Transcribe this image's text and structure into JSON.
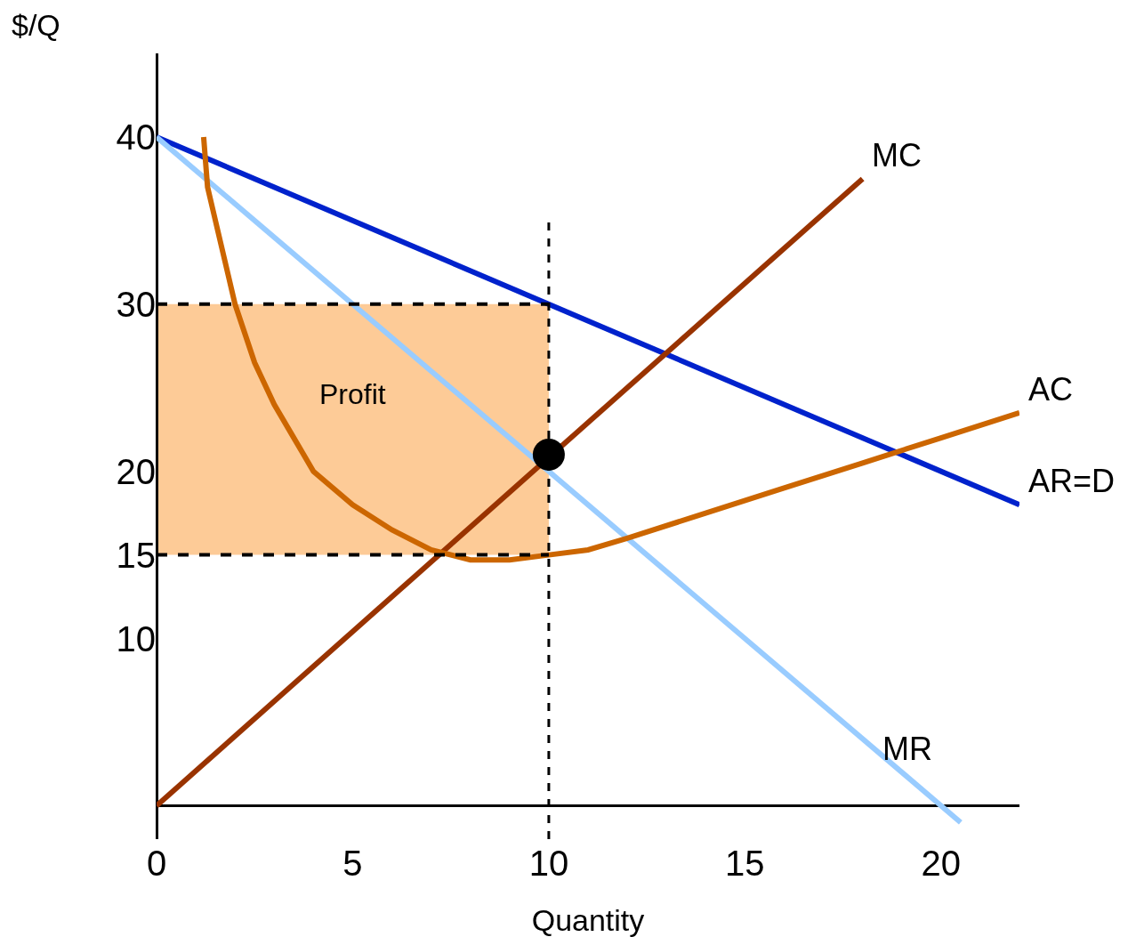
{
  "chart_data": {
    "type": "line",
    "ylabel": "$/Q",
    "xlabel": "Quantity",
    "xlim": [
      0,
      22
    ],
    "ylim": [
      -2,
      45
    ],
    "xticks": [
      0,
      5,
      10,
      15,
      20
    ],
    "yticks": [
      10,
      15,
      20,
      30,
      40
    ],
    "grid": false,
    "legend": false,
    "marker": "none",
    "bands": [
      {
        "axis": "y",
        "from": 15,
        "to": 30,
        "label": "Profit",
        "color": "#fdcb97"
      }
    ],
    "ref_lines": [
      {
        "axis": "x",
        "value": 10,
        "line_style": "dashed",
        "color": "#000000"
      },
      {
        "axis": "y",
        "value": 30,
        "line_style": "dashed",
        "color": "#000000"
      },
      {
        "axis": "y",
        "value": 15,
        "line_style": "dashed",
        "color": "#000000"
      }
    ],
    "series": [
      {
        "name": "AR=D",
        "x": [
          0,
          22
        ],
        "values": [
          40,
          18
        ],
        "color": "#0022cc"
      },
      {
        "name": "MR",
        "x": [
          0,
          20.5
        ],
        "values": [
          40,
          -1
        ],
        "color": "#99ccff"
      },
      {
        "name": "MC",
        "x": [
          0,
          18
        ],
        "values": [
          0,
          37.5
        ],
        "color": "#993300"
      },
      {
        "name": "AC",
        "x": [
          1.2,
          1.3,
          1.5,
          2,
          2.5,
          3,
          3.5,
          4,
          5,
          6,
          7,
          8,
          9,
          10,
          11,
          12,
          14,
          16,
          18,
          20,
          22
        ],
        "values": [
          40,
          37,
          35,
          30,
          26.5,
          24,
          22,
          20,
          18,
          16.5,
          15.3,
          14.7,
          14.7,
          15,
          15.3,
          16,
          17.5,
          19,
          20.5,
          22,
          23.5
        ],
        "color": "#cc6600"
      },
      {
        "type": "scatter",
        "x": [
          10
        ],
        "values": [
          21
        ],
        "color": "#000000",
        "marker": "circle"
      }
    ]
  }
}
